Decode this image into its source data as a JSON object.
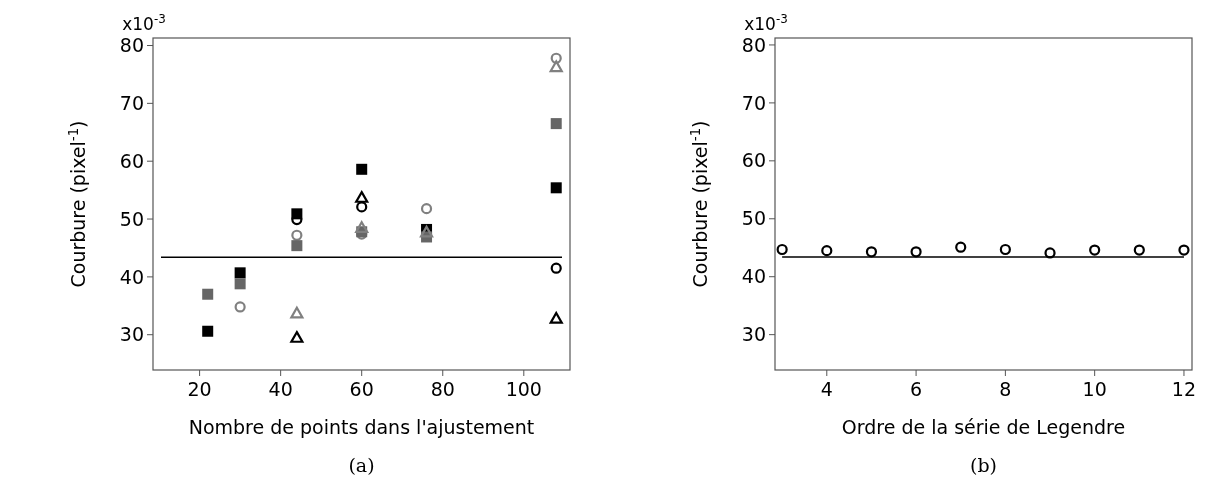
{
  "chart_data": [
    {
      "type": "scatter",
      "xlabel": "Nombre de points dans l'ajustement",
      "ylabel": "Courbure (pixel$^{-1}$)",
      "annotations": [
        "x10$^{-3}$",
        "(a)"
      ],
      "xlim": [
        8.5,
        111.4
      ],
      "xticks": [
        20,
        40,
        60,
        80,
        100
      ],
      "ylim": [
        23.9,
        81.3
      ],
      "yticks": [
        30,
        40,
        50,
        60,
        70,
        80
      ],
      "grid": false,
      "ref_lines": [
        {
          "axis": "y",
          "value": 43.4,
          "color": "#000000"
        }
      ],
      "series": [
        {
          "color": "#808080",
          "marker": "circle",
          "x": [
            30,
            44,
            60,
            76,
            108
          ],
          "values": [
            34.8,
            47.2,
            47.4,
            51.8,
            77.8
          ]
        },
        {
          "color": "#000000",
          "marker": "square",
          "x": [
            22,
            30,
            44,
            60,
            76,
            108
          ],
          "values": [
            30.6,
            40.7,
            50.9,
            58.6,
            48.2,
            55.4
          ]
        },
        {
          "color": "#666666",
          "marker": "square",
          "x": [
            22,
            30,
            44,
            60,
            76,
            108
          ],
          "values": [
            37.0,
            38.8,
            45.4,
            47.8,
            46.9,
            66.5
          ]
        },
        {
          "color": "#808080",
          "marker": "triangle",
          "x": [
            44,
            60,
            76,
            108
          ],
          "values": [
            33.7,
            48.5,
            47.7,
            76.3
          ]
        },
        {
          "color": "#000000",
          "marker": "circle",
          "x": [
            44,
            60,
            108
          ],
          "values": [
            49.9,
            52.1,
            41.5
          ]
        },
        {
          "color": "#000000",
          "marker": "triangle",
          "x": [
            44,
            60,
            108
          ],
          "values": [
            29.5,
            53.7,
            32.8
          ]
        }
      ]
    },
    {
      "type": "scatter",
      "xlabel": "Ordre de la série de Legendre",
      "ylabel": "Courbure (pixel$^{-1}$)",
      "annotations": [
        "x10$^{-3}$",
        "(b)"
      ],
      "xlim": [
        2.84,
        12.18
      ],
      "xticks": [
        4,
        6,
        8,
        10,
        12
      ],
      "ylim": [
        23.9,
        81.2
      ],
      "yticks": [
        30,
        40,
        50,
        60,
        70,
        80
      ],
      "grid": false,
      "series": [
        {
          "color": "#000000",
          "marker": "circle",
          "x": [
            3,
            4,
            5,
            6,
            7,
            8,
            9,
            10,
            11,
            12
          ],
          "values": [
            44.7,
            44.5,
            44.3,
            44.3,
            45.1,
            44.7,
            44.1,
            44.6,
            44.6,
            44.6
          ]
        },
        {
          "type": "line",
          "color": "#000000",
          "marker": "none",
          "x": [
            3,
            12
          ],
          "values": [
            43.4,
            43.4
          ]
        }
      ]
    }
  ]
}
